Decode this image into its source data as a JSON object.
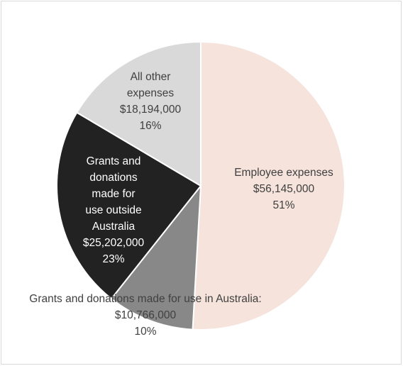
{
  "chart_data": {
    "type": "pie",
    "title": "",
    "slices": [
      {
        "label": "Employee expenses",
        "value": 56145000,
        "value_text": "$56,145,000",
        "percent_text": "51%",
        "color": "#f5e3dc",
        "text_color": "#404040"
      },
      {
        "label": "Grants and donations made for use in Australia:",
        "value": 10766000,
        "value_text": "$10,766,000",
        "percent_text": "10%",
        "color": "#888888",
        "text_color": "#404040"
      },
      {
        "label": "Grants and donations made for use outside Australia",
        "value": 25202000,
        "value_text": "$25,202,000",
        "percent_text": "23%",
        "color": "#222222",
        "text_color": "#ffffff"
      },
      {
        "label": "All other expenses",
        "value": 18194000,
        "value_text": "$18,194,000",
        "percent_text": "16%",
        "color": "#d9d9d9",
        "text_color": "#404040"
      }
    ],
    "label_lines": [
      [
        "Employee expenses"
      ],
      [
        "Grants and donations made for use in Australia:"
      ],
      [
        "Grants and",
        "donations",
        "made for",
        "use outside",
        "Australia"
      ],
      [
        "All other",
        "expenses"
      ]
    ],
    "start_angle_deg": 0,
    "direction": "clockwise",
    "slice_border_color": "#ffffff"
  }
}
